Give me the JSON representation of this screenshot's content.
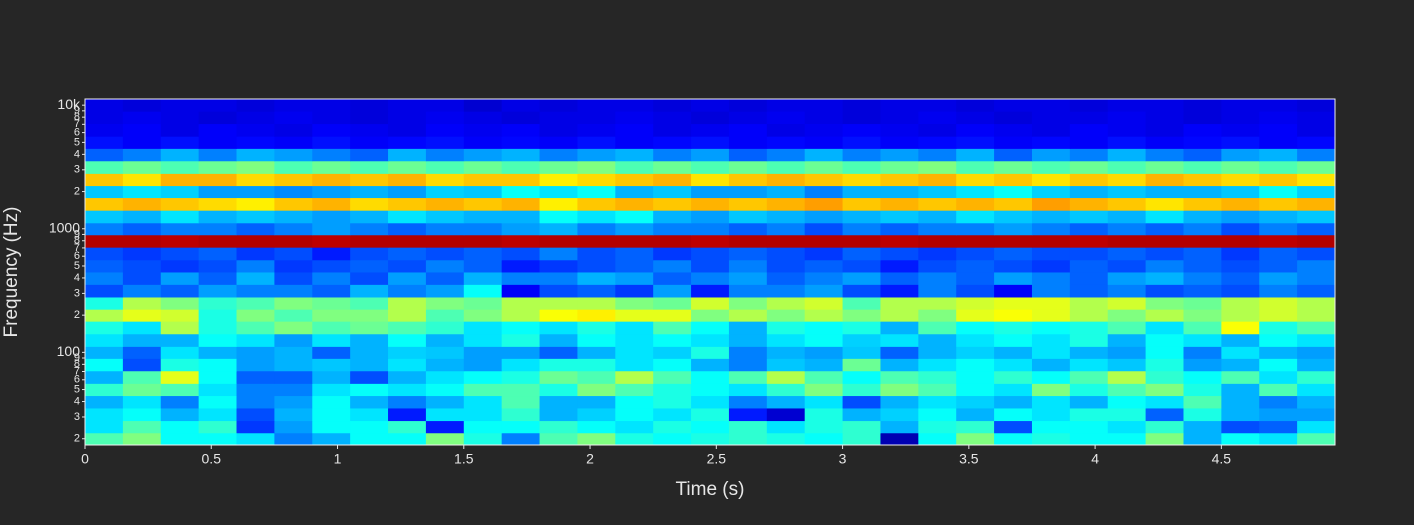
{
  "chart_data": {
    "type": "heatmap",
    "x_label": "Time (s)",
    "y_label": "Frequency (Hz)",
    "colorscale": "jet",
    "zlim": [
      0,
      1
    ],
    "y_scale": "log",
    "xlim": [
      0,
      4.95
    ],
    "ylim": [
      17.8,
      11220
    ],
    "xticks": [
      0,
      0.5,
      1,
      1.5,
      2,
      2.5,
      3,
      3.5,
      4,
      4.5
    ],
    "yticks": [
      {
        "value": 20,
        "label": "2"
      },
      {
        "value": 30,
        "label": "3"
      },
      {
        "value": 40,
        "label": "4"
      },
      {
        "value": 50,
        "label": "5"
      },
      {
        "value": 60,
        "label": "6"
      },
      {
        "value": 70,
        "label": "7"
      },
      {
        "value": 80,
        "label": "8"
      },
      {
        "value": 90,
        "label": "9"
      },
      100,
      {
        "value": 200,
        "label": "2"
      },
      {
        "value": 300,
        "label": "3"
      },
      {
        "value": 400,
        "label": "4"
      },
      {
        "value": 500,
        "label": "5"
      },
      {
        "value": 600,
        "label": "6"
      },
      {
        "value": 700,
        "label": "7"
      },
      {
        "value": 800,
        "label": "8"
      },
      {
        "value": 900,
        "label": "9"
      },
      1000,
      {
        "value": 2000,
        "label": "2"
      },
      {
        "value": 3000,
        "label": "3"
      },
      {
        "value": 4000,
        "label": "4"
      },
      {
        "value": 5000,
        "label": "5"
      },
      {
        "value": 6000,
        "label": "6"
      },
      {
        "value": 7000,
        "label": "7"
      },
      {
        "value": 8000,
        "label": "8"
      },
      {
        "value": 9000,
        "label": "9"
      },
      {
        "value": 10000,
        "label": "10k"
      }
    ],
    "xbins": [
      0,
      0.15,
      0.3,
      0.45,
      0.6,
      0.75,
      0.9,
      1.05,
      1.2,
      1.35,
      1.5,
      1.65,
      1.8,
      1.95,
      2.1,
      2.25,
      2.4,
      2.55,
      2.7,
      2.85,
      3,
      3.15,
      3.3,
      3.45,
      3.6,
      3.75,
      3.9,
      4.05,
      4.2,
      4.35,
      4.5,
      4.65,
      4.8,
      4.95
    ],
    "y": [
      20,
      25,
      31.5,
      40,
      50,
      63,
      80,
      100,
      125,
      160,
      200,
      250,
      315,
      400,
      500,
      630,
      800,
      1000,
      1250,
      1600,
      2000,
      2500,
      3150,
      4000,
      5000,
      6300,
      8000,
      10000
    ],
    "z": [
      [
        0.45,
        0.5,
        0.38,
        0.38,
        0.35,
        0.25,
        0.3,
        0.38,
        0.38,
        0.5,
        0.4,
        0.25,
        0.45,
        0.5,
        0.4,
        0.38,
        0.4,
        0.42,
        0.4,
        0.38,
        0.42,
        0.05,
        0.38,
        0.5,
        0.38,
        0.4,
        0.38,
        0.38,
        0.5,
        0.3,
        0.38,
        0.35,
        0.45
      ],
      [
        0.35,
        0.45,
        0.38,
        0.42,
        0.18,
        0.28,
        0.38,
        0.38,
        0.42,
        0.15,
        0.38,
        0.38,
        0.42,
        0.38,
        0.35,
        0.4,
        0.38,
        0.42,
        0.35,
        0.4,
        0.42,
        0.3,
        0.4,
        0.42,
        0.2,
        0.38,
        0.38,
        0.35,
        0.42,
        0.3,
        0.2,
        0.22,
        0.35
      ],
      [
        0.35,
        0.38,
        0.3,
        0.35,
        0.2,
        0.3,
        0.38,
        0.35,
        0.15,
        0.35,
        0.35,
        0.42,
        0.3,
        0.33,
        0.38,
        0.35,
        0.4,
        0.15,
        0.08,
        0.4,
        0.3,
        0.33,
        0.38,
        0.3,
        0.38,
        0.35,
        0.4,
        0.4,
        0.22,
        0.4,
        0.3,
        0.28,
        0.28
      ],
      [
        0.3,
        0.35,
        0.25,
        0.38,
        0.25,
        0.28,
        0.38,
        0.3,
        0.25,
        0.3,
        0.35,
        0.45,
        0.3,
        0.3,
        0.38,
        0.4,
        0.35,
        0.25,
        0.3,
        0.35,
        0.2,
        0.3,
        0.35,
        0.33,
        0.3,
        0.35,
        0.3,
        0.38,
        0.35,
        0.45,
        0.3,
        0.25,
        0.3
      ],
      [
        0.42,
        0.48,
        0.45,
        0.35,
        0.25,
        0.25,
        0.35,
        0.38,
        0.35,
        0.38,
        0.45,
        0.45,
        0.4,
        0.5,
        0.45,
        0.4,
        0.38,
        0.35,
        0.42,
        0.5,
        0.42,
        0.5,
        0.45,
        0.38,
        0.35,
        0.5,
        0.4,
        0.45,
        0.5,
        0.4,
        0.3,
        0.45,
        0.35
      ],
      [
        0.3,
        0.45,
        0.6,
        0.38,
        0.22,
        0.22,
        0.3,
        0.2,
        0.3,
        0.35,
        0.38,
        0.4,
        0.48,
        0.45,
        0.55,
        0.45,
        0.38,
        0.45,
        0.55,
        0.45,
        0.38,
        0.45,
        0.42,
        0.38,
        0.42,
        0.38,
        0.45,
        0.55,
        0.42,
        0.38,
        0.45,
        0.35,
        0.42
      ],
      [
        0.38,
        0.2,
        0.4,
        0.38,
        0.28,
        0.3,
        0.32,
        0.3,
        0.35,
        0.3,
        0.28,
        0.35,
        0.4,
        0.4,
        0.35,
        0.38,
        0.3,
        0.25,
        0.32,
        0.3,
        0.48,
        0.3,
        0.35,
        0.38,
        0.35,
        0.3,
        0.35,
        0.32,
        0.4,
        0.28,
        0.3,
        0.38,
        0.3
      ],
      [
        0.3,
        0.22,
        0.35,
        0.3,
        0.28,
        0.3,
        0.22,
        0.3,
        0.33,
        0.32,
        0.28,
        0.28,
        0.22,
        0.3,
        0.35,
        0.33,
        0.4,
        0.25,
        0.3,
        0.28,
        0.32,
        0.22,
        0.3,
        0.33,
        0.3,
        0.35,
        0.3,
        0.28,
        0.38,
        0.25,
        0.35,
        0.3,
        0.28
      ],
      [
        0.35,
        0.3,
        0.3,
        0.38,
        0.35,
        0.28,
        0.35,
        0.3,
        0.38,
        0.3,
        0.35,
        0.4,
        0.3,
        0.38,
        0.35,
        0.38,
        0.35,
        0.3,
        0.35,
        0.38,
        0.33,
        0.35,
        0.3,
        0.35,
        0.38,
        0.35,
        0.4,
        0.3,
        0.38,
        0.35,
        0.3,
        0.38,
        0.35
      ],
      [
        0.4,
        0.35,
        0.55,
        0.4,
        0.45,
        0.5,
        0.45,
        0.48,
        0.45,
        0.42,
        0.35,
        0.38,
        0.35,
        0.4,
        0.35,
        0.45,
        0.38,
        0.3,
        0.4,
        0.38,
        0.4,
        0.3,
        0.45,
        0.38,
        0.4,
        0.38,
        0.4,
        0.45,
        0.35,
        0.45,
        0.62,
        0.4,
        0.45
      ],
      [
        0.55,
        0.6,
        0.58,
        0.4,
        0.5,
        0.45,
        0.5,
        0.5,
        0.55,
        0.45,
        0.5,
        0.55,
        0.62,
        0.64,
        0.6,
        0.6,
        0.5,
        0.55,
        0.5,
        0.55,
        0.5,
        0.55,
        0.5,
        0.6,
        0.62,
        0.6,
        0.55,
        0.5,
        0.55,
        0.5,
        0.55,
        0.58,
        0.55
      ],
      [
        0.4,
        0.55,
        0.5,
        0.42,
        0.45,
        0.5,
        0.48,
        0.45,
        0.55,
        0.5,
        0.48,
        0.55,
        0.55,
        0.55,
        0.5,
        0.48,
        0.58,
        0.5,
        0.55,
        0.58,
        0.45,
        0.55,
        0.55,
        0.58,
        0.6,
        0.6,
        0.55,
        0.58,
        0.5,
        0.48,
        0.55,
        0.58,
        0.55
      ],
      [
        0.2,
        0.25,
        0.22,
        0.28,
        0.25,
        0.25,
        0.22,
        0.3,
        0.25,
        0.28,
        0.38,
        0.12,
        0.2,
        0.22,
        0.18,
        0.28,
        0.15,
        0.25,
        0.25,
        0.28,
        0.2,
        0.15,
        0.25,
        0.2,
        0.12,
        0.25,
        0.22,
        0.25,
        0.2,
        0.22,
        0.2,
        0.25,
        0.22
      ],
      [
        0.25,
        0.2,
        0.28,
        0.22,
        0.3,
        0.2,
        0.25,
        0.2,
        0.28,
        0.22,
        0.3,
        0.25,
        0.25,
        0.3,
        0.28,
        0.22,
        0.25,
        0.28,
        0.22,
        0.25,
        0.28,
        0.22,
        0.25,
        0.22,
        0.28,
        0.25,
        0.22,
        0.28,
        0.3,
        0.25,
        0.22,
        0.28,
        0.25
      ],
      [
        0.22,
        0.2,
        0.18,
        0.2,
        0.25,
        0.18,
        0.2,
        0.22,
        0.2,
        0.25,
        0.22,
        0.15,
        0.18,
        0.2,
        0.22,
        0.25,
        0.2,
        0.25,
        0.2,
        0.22,
        0.2,
        0.15,
        0.2,
        0.22,
        0.2,
        0.18,
        0.22,
        0.2,
        0.25,
        0.22,
        0.2,
        0.22,
        0.25
      ],
      [
        0.2,
        0.18,
        0.2,
        0.22,
        0.18,
        0.2,
        0.15,
        0.2,
        0.22,
        0.2,
        0.22,
        0.2,
        0.25,
        0.2,
        0.22,
        0.18,
        0.2,
        0.22,
        0.2,
        0.18,
        0.22,
        0.2,
        0.18,
        0.2,
        0.22,
        0.2,
        0.2,
        0.22,
        0.2,
        0.22,
        0.18,
        0.22,
        0.2
      ],
      [
        0.95,
        0.95,
        0.94,
        0.95,
        0.95,
        0.95,
        0.94,
        0.95,
        0.95,
        0.95,
        0.95,
        0.94,
        0.95,
        0.95,
        0.95,
        0.95,
        0.94,
        0.95,
        0.95,
        0.95,
        0.95,
        0.94,
        0.95,
        0.95,
        0.95,
        0.95,
        0.94,
        0.95,
        0.95,
        0.95,
        0.95,
        0.94,
        0.95
      ],
      [
        0.25,
        0.22,
        0.25,
        0.25,
        0.22,
        0.25,
        0.28,
        0.25,
        0.22,
        0.25,
        0.25,
        0.28,
        0.3,
        0.25,
        0.28,
        0.25,
        0.25,
        0.22,
        0.25,
        0.2,
        0.25,
        0.22,
        0.25,
        0.25,
        0.28,
        0.25,
        0.22,
        0.25,
        0.22,
        0.25,
        0.2,
        0.25,
        0.22
      ],
      [
        0.32,
        0.3,
        0.35,
        0.3,
        0.32,
        0.3,
        0.28,
        0.3,
        0.35,
        0.32,
        0.3,
        0.3,
        0.38,
        0.35,
        0.38,
        0.3,
        0.28,
        0.32,
        0.3,
        0.28,
        0.3,
        0.32,
        0.3,
        0.35,
        0.32,
        0.3,
        0.32,
        0.3,
        0.35,
        0.3,
        0.28,
        0.3,
        0.32
      ],
      [
        0.68,
        0.7,
        0.68,
        0.66,
        0.64,
        0.68,
        0.7,
        0.66,
        0.68,
        0.7,
        0.68,
        0.7,
        0.64,
        0.68,
        0.7,
        0.68,
        0.7,
        0.68,
        0.7,
        0.72,
        0.68,
        0.7,
        0.68,
        0.7,
        0.68,
        0.72,
        0.7,
        0.68,
        0.65,
        0.68,
        0.7,
        0.68,
        0.7
      ],
      [
        0.32,
        0.35,
        0.33,
        0.28,
        0.28,
        0.26,
        0.28,
        0.3,
        0.28,
        0.33,
        0.32,
        0.38,
        0.35,
        0.38,
        0.3,
        0.32,
        0.28,
        0.28,
        0.3,
        0.25,
        0.3,
        0.3,
        0.32,
        0.35,
        0.38,
        0.33,
        0.3,
        0.32,
        0.3,
        0.3,
        0.32,
        0.38,
        0.33
      ],
      [
        0.68,
        0.65,
        0.7,
        0.7,
        0.66,
        0.68,
        0.7,
        0.68,
        0.7,
        0.66,
        0.68,
        0.68,
        0.64,
        0.66,
        0.68,
        0.7,
        0.65,
        0.68,
        0.7,
        0.68,
        0.66,
        0.68,
        0.7,
        0.66,
        0.68,
        0.65,
        0.68,
        0.66,
        0.7,
        0.68,
        0.66,
        0.68,
        0.65
      ],
      [
        0.45,
        0.48,
        0.45,
        0.48,
        0.5,
        0.45,
        0.48,
        0.45,
        0.48,
        0.45,
        0.48,
        0.45,
        0.48,
        0.5,
        0.45,
        0.48,
        0.45,
        0.48,
        0.45,
        0.48,
        0.45,
        0.48,
        0.5,
        0.45,
        0.48,
        0.45,
        0.48,
        0.45,
        0.48,
        0.45,
        0.48,
        0.45,
        0.48
      ],
      [
        0.22,
        0.25,
        0.3,
        0.25,
        0.3,
        0.28,
        0.25,
        0.22,
        0.3,
        0.25,
        0.28,
        0.3,
        0.25,
        0.28,
        0.3,
        0.25,
        0.28,
        0.22,
        0.25,
        0.3,
        0.25,
        0.28,
        0.25,
        0.3,
        0.22,
        0.28,
        0.25,
        0.3,
        0.25,
        0.22,
        0.28,
        0.3,
        0.25
      ],
      [
        0.14,
        0.12,
        0.14,
        0.12,
        0.13,
        0.12,
        0.14,
        0.12,
        0.13,
        0.14,
        0.12,
        0.13,
        0.12,
        0.14,
        0.12,
        0.13,
        0.14,
        0.12,
        0.13,
        0.12,
        0.14,
        0.12,
        0.13,
        0.14,
        0.12,
        0.13,
        0.12,
        0.14,
        0.12,
        0.13,
        0.14,
        0.12,
        0.13
      ],
      [
        0.11,
        0.12,
        0.1,
        0.12,
        0.11,
        0.1,
        0.12,
        0.11,
        0.1,
        0.12,
        0.11,
        0.12,
        0.1,
        0.11,
        0.12,
        0.1,
        0.11,
        0.12,
        0.1,
        0.11,
        0.12,
        0.11,
        0.1,
        0.12,
        0.11,
        0.1,
        0.12,
        0.11,
        0.1,
        0.12,
        0.11,
        0.12,
        0.1
      ],
      [
        0.1,
        0.11,
        0.1,
        0.09,
        0.1,
        0.11,
        0.1,
        0.09,
        0.1,
        0.11,
        0.1,
        0.09,
        0.1,
        0.1,
        0.11,
        0.1,
        0.09,
        0.1,
        0.11,
        0.1,
        0.09,
        0.1,
        0.11,
        0.1,
        0.09,
        0.1,
        0.1,
        0.11,
        0.1,
        0.09,
        0.1,
        0.11,
        0.1
      ],
      [
        0.1,
        0.09,
        0.1,
        0.1,
        0.09,
        0.1,
        0.1,
        0.09,
        0.1,
        0.1,
        0.08,
        0.1,
        0.09,
        0.1,
        0.1,
        0.09,
        0.1,
        0.09,
        0.1,
        0.1,
        0.09,
        0.1,
        0.1,
        0.09,
        0.1,
        0.1,
        0.09,
        0.1,
        0.1,
        0.09,
        0.1,
        0.1,
        0.09
      ]
    ]
  }
}
